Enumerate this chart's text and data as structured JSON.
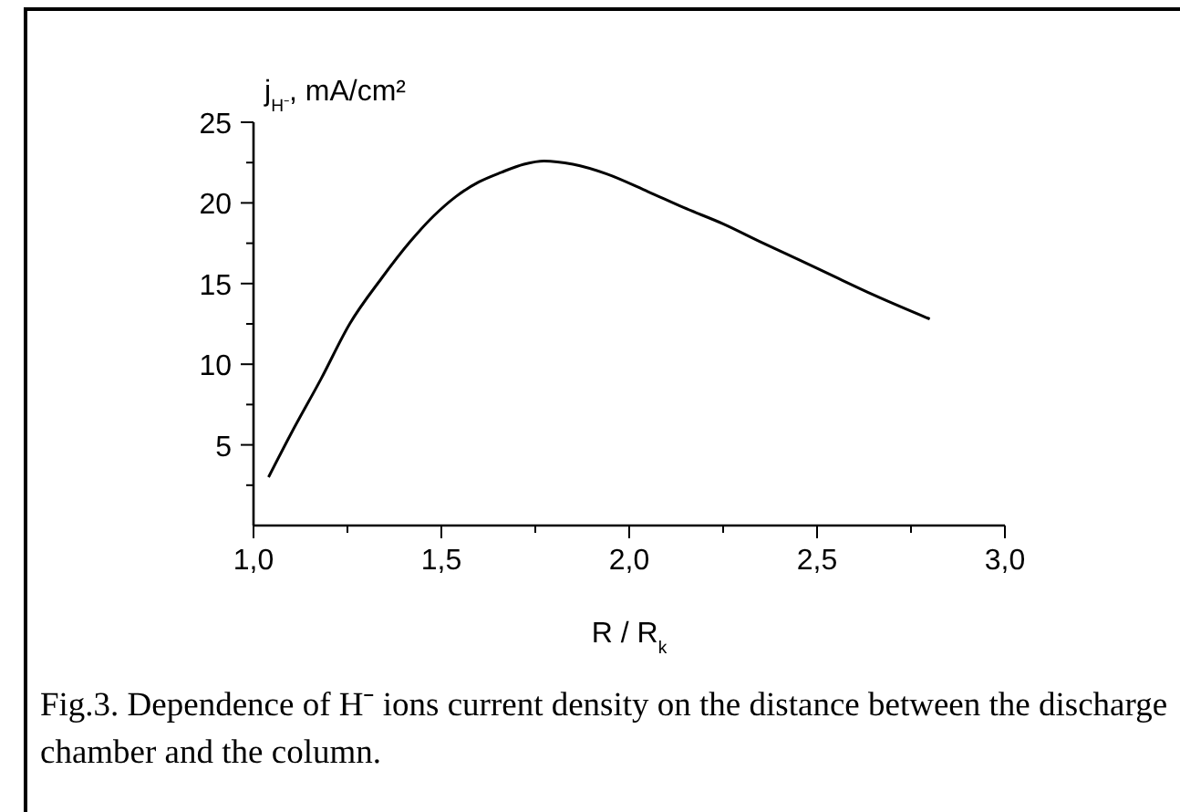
{
  "chart_data": {
    "type": "line",
    "xlabel": "R / R$_{k}$",
    "ylabel": "j$_{H⁻}$, mA/cm²",
    "annotations": [
      "Fig.3. Dependence of H⁻ ions current density on the distance between the discharge chamber and the column."
    ],
    "series": [
      {
        "color": "#000000",
        "x": [
          1.04,
          1.1,
          1.18,
          1.256,
          1.34,
          1.417,
          1.48,
          1.539,
          1.6,
          1.66,
          1.72,
          1.773,
          1.85,
          1.94,
          2.05,
          2.146,
          2.25,
          2.348,
          2.45,
          2.549,
          2.65,
          2.8
        ],
        "values": [
          3.0,
          5.7,
          9.1,
          12.5,
          15.3,
          17.6,
          19.2,
          20.4,
          21.3,
          21.9,
          22.4,
          22.6,
          22.4,
          21.8,
          20.7,
          19.7,
          18.7,
          17.6,
          16.5,
          15.4,
          14.3,
          12.8
        ]
      }
    ],
    "xlim": [
      1,
      3
    ],
    "ylim": [
      0,
      25
    ],
    "xticks": [
      {
        "value": 1,
        "label": "1,0"
      },
      {
        "value": 1.25,
        "label": null
      },
      {
        "value": 1.5,
        "label": "1,5"
      },
      {
        "value": 1.75,
        "label": null
      },
      {
        "value": 2,
        "label": "2,0"
      },
      {
        "value": 2.25,
        "label": null
      },
      {
        "value": 2.5,
        "label": "2,5"
      },
      {
        "value": 2.75,
        "label": null
      },
      {
        "value": 3,
        "label": "3,0"
      }
    ],
    "yticks": [
      {
        "value": 2.5,
        "label": null
      },
      5,
      {
        "value": 7.5,
        "label": null
      },
      10,
      {
        "value": 12.5,
        "label": null
      },
      15,
      {
        "value": 17.5,
        "label": null
      },
      20,
      {
        "value": 22.5,
        "label": null
      },
      25
    ],
    "grid": false,
    "marker": "none",
    "line_style": "solid"
  }
}
